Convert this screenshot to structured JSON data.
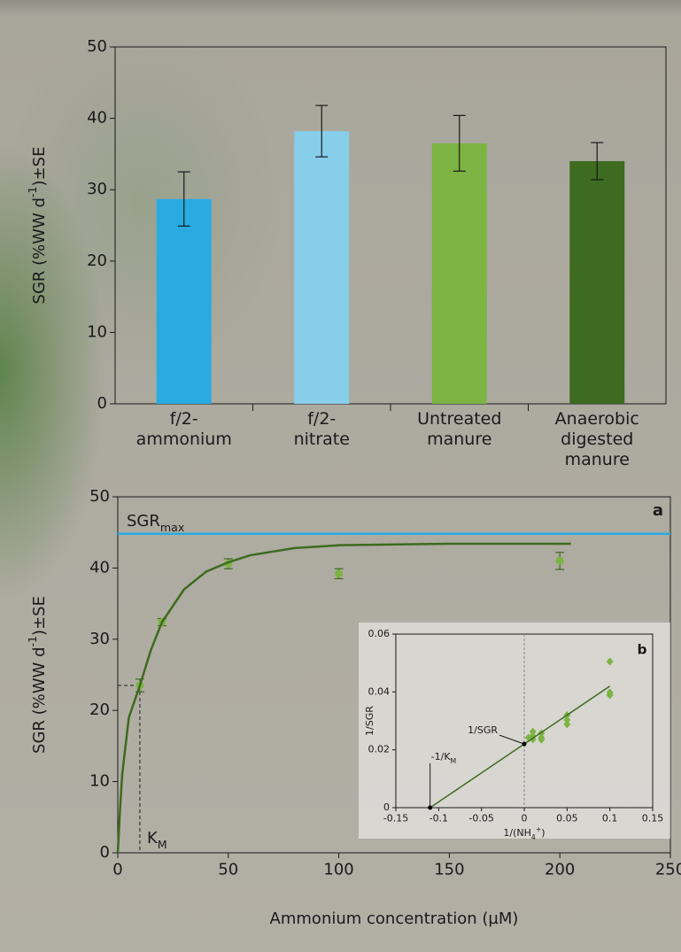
{
  "chart_data": [
    {
      "type": "bar",
      "ylabel": [
        "SGR (%WW d",
        "-1",
        ")±SE"
      ],
      "categories": [
        "f/2-ammonium",
        "f/2-nitrate",
        "Untreated manure",
        "Anaerobic digested manure"
      ],
      "values": [
        28.7,
        38.2,
        36.5,
        34.0
      ],
      "errors": [
        3.8,
        3.6,
        3.9,
        2.6
      ],
      "colors": [
        "#29abe2",
        "#87ceeb",
        "#7cb342",
        "#3d6b1f"
      ],
      "ylim": [
        0,
        50
      ],
      "yticks": [
        0,
        10,
        20,
        30,
        40,
        50
      ]
    },
    {
      "type": "scatter",
      "panel_label": "a",
      "xlabel": "Ammonium concentration (µM)",
      "ylabel": [
        "SGR (%WW d",
        "-1",
        ")±SE"
      ],
      "xlim": [
        0,
        250
      ],
      "xticks": [
        0,
        50,
        100,
        150,
        200,
        250
      ],
      "ylim": [
        0,
        50
      ],
      "yticks": [
        0,
        10,
        20,
        30,
        40,
        50
      ],
      "sgr_max": {
        "value": 44.8,
        "label": "SGR",
        "sub": "max",
        "color": "#29abe2"
      },
      "km": {
        "x": 10,
        "y": 23.5,
        "label": "K",
        "sub": "M"
      },
      "series": [
        {
          "type": "scatter",
          "color": "#7cb342",
          "x": [
            10,
            20,
            50,
            100,
            200
          ],
          "values": [
            23.5,
            32.4,
            40.6,
            39.2,
            41.0
          ],
          "errors": [
            0.9,
            0.5,
            0.7,
            0.7,
            1.2
          ]
        },
        {
          "type": "line",
          "color": "#3d6b1f",
          "x": [
            0,
            1,
            2,
            5,
            10,
            15,
            20,
            30,
            40,
            50,
            60,
            80,
            100,
            150,
            205
          ],
          "values": [
            0,
            6,
            11,
            19,
            23.5,
            28.5,
            32.4,
            37,
            39.5,
            40.8,
            41.8,
            42.8,
            43.2,
            43.4,
            43.4
          ]
        }
      ]
    },
    {
      "type": "scatter",
      "panel_label": "b",
      "xlabel": [
        "1/(NH",
        "4",
        "+",
        ")"
      ],
      "ylabel": "1/SGR",
      "xlim": [
        -0.15,
        0.15
      ],
      "xticks": [
        -0.15,
        -0.1,
        -0.05,
        0,
        0.05,
        0.1,
        0.15
      ],
      "ylim": [
        0,
        0.06
      ],
      "yticks": [
        0,
        0.02,
        0.04,
        0.06
      ],
      "zero_line": true,
      "annotations": [
        {
          "text": "1/SGR",
          "x": 0,
          "y": 0.022
        },
        {
          "text": "-1/K",
          "sub": "M",
          "x": -0.11,
          "y": 0
        }
      ],
      "series": [
        {
          "type": "scatter",
          "marker": "diamond",
          "color": "#7cb342",
          "x": [
            0.1,
            0.1,
            0.1,
            0.05,
            0.05,
            0.05,
            0.02,
            0.02,
            0.02,
            0.01,
            0.01,
            0.01,
            0.005
          ],
          "values": [
            0.0505,
            0.0398,
            0.0389,
            0.032,
            0.0303,
            0.0288,
            0.0257,
            0.0242,
            0.0235,
            0.0263,
            0.0248,
            0.0236,
            0.0242
          ]
        },
        {
          "type": "line",
          "color": "#3d6b1f",
          "x": [
            -0.11,
            0.1
          ],
          "values": [
            0,
            0.042
          ]
        }
      ]
    }
  ]
}
